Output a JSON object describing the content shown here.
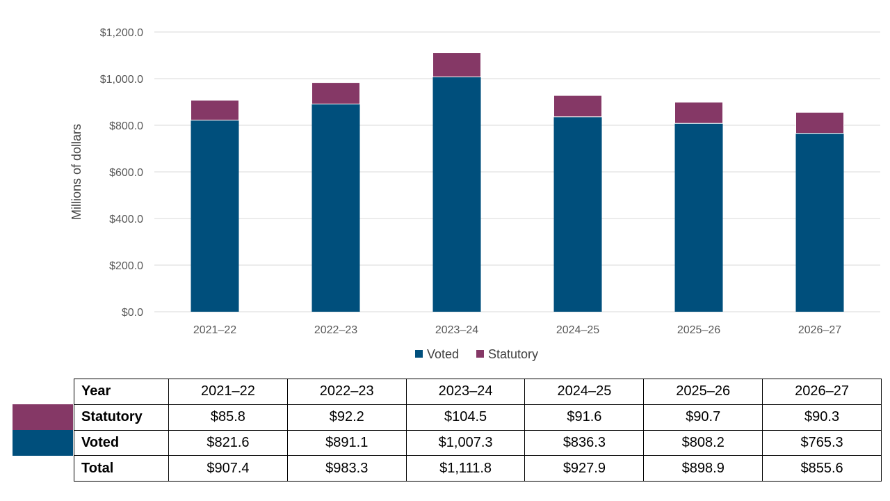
{
  "chart_data": {
    "type": "bar",
    "stacked": true,
    "categories": [
      "2021–22",
      "2022–23",
      "2023–24",
      "2024–25",
      "2025–26",
      "2026–27"
    ],
    "series": [
      {
        "name": "Voted",
        "values": [
          821.6,
          891.1,
          1007.3,
          836.3,
          808.2,
          765.3
        ],
        "color": "#004f7c"
      },
      {
        "name": "Statutory",
        "values": [
          85.8,
          92.2,
          104.5,
          91.6,
          90.7,
          90.3
        ],
        "color": "#853866"
      }
    ],
    "ylabel": "Millions of dollars",
    "ylim": [
      0,
      1200
    ],
    "yticks": [
      "$0.0",
      "$200.0",
      "$400.0",
      "$600.0",
      "$800.0",
      "$1,000.0",
      "$1,200.0"
    ],
    "ytick_values": [
      0,
      200,
      400,
      600,
      800,
      1000,
      1200
    ],
    "grid": true,
    "legend_position": "bottom"
  },
  "table": {
    "header_label": "Year",
    "years": [
      "2021–22",
      "2022–23",
      "2023–24",
      "2024–25",
      "2025–26",
      "2026–27"
    ],
    "rows": [
      {
        "label": "Statutory",
        "color": "#853866",
        "values": [
          "$85.8",
          "$92.2",
          "$104.5",
          "$91.6",
          "$90.7",
          "$90.3"
        ]
      },
      {
        "label": "Voted",
        "color": "#004f7c",
        "values": [
          "$821.6",
          "$891.1",
          "$1,007.3",
          "$836.3",
          "$808.2",
          "$765.3"
        ]
      },
      {
        "label": "Total",
        "values": [
          "$907.4",
          "$983.3",
          "$1,111.8",
          "$927.9",
          "$898.9",
          "$855.6"
        ]
      }
    ]
  }
}
